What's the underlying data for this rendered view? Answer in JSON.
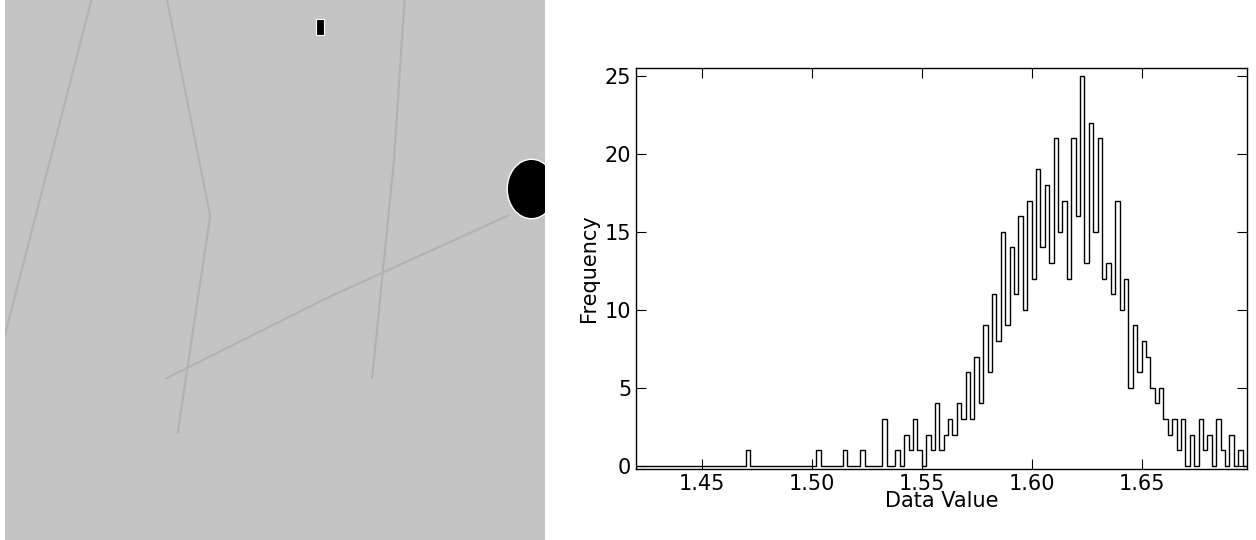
{
  "chart_data": {
    "type": "histogram",
    "x_label": "Data Value",
    "y_label": "Frequency",
    "bins": [
      1.42,
      1.422,
      1.424,
      1.426,
      1.428,
      1.43,
      1.432,
      1.434,
      1.436,
      1.438,
      1.44,
      1.442,
      1.444,
      1.446,
      1.448,
      1.45,
      1.452,
      1.454,
      1.456,
      1.458,
      1.46,
      1.462,
      1.464,
      1.466,
      1.468,
      1.47,
      1.472,
      1.474,
      1.476,
      1.478,
      1.48,
      1.482,
      1.484,
      1.486,
      1.488,
      1.49,
      1.492,
      1.494,
      1.496,
      1.498,
      1.5,
      1.502,
      1.504,
      1.506,
      1.508,
      1.51,
      1.512,
      1.514,
      1.516,
      1.518,
      1.52,
      1.522,
      1.524,
      1.526,
      1.528,
      1.53,
      1.532,
      1.534,
      1.536,
      1.538,
      1.54,
      1.542,
      1.544,
      1.546,
      1.548,
      1.55,
      1.552,
      1.554,
      1.556,
      1.558,
      1.56,
      1.562,
      1.564,
      1.566,
      1.568,
      1.57,
      1.572,
      1.574,
      1.576,
      1.578,
      1.58,
      1.582,
      1.584,
      1.586,
      1.588,
      1.59,
      1.592,
      1.594,
      1.596,
      1.598,
      1.6,
      1.602,
      1.604,
      1.606,
      1.608,
      1.61,
      1.612,
      1.614,
      1.616,
      1.618,
      1.62,
      1.622,
      1.624,
      1.626,
      1.628,
      1.63,
      1.632,
      1.634,
      1.636,
      1.638,
      1.64,
      1.642,
      1.644,
      1.646,
      1.648,
      1.65,
      1.652,
      1.654,
      1.656,
      1.658,
      1.66,
      1.662,
      1.664,
      1.666,
      1.668,
      1.67,
      1.672,
      1.674,
      1.676,
      1.678,
      1.68,
      1.682,
      1.684,
      1.686,
      1.688,
      1.69,
      1.692,
      1.694,
      1.696,
      1.698
    ],
    "values": [
      0,
      0,
      0,
      0,
      0,
      0,
      0,
      0,
      0,
      0,
      0,
      0,
      0,
      0,
      0,
      0,
      0,
      0,
      0,
      0,
      0,
      0,
      0,
      0,
      0,
      1,
      0,
      0,
      0,
      0,
      0,
      0,
      0,
      0,
      0,
      0,
      0,
      0,
      0,
      0,
      0,
      1,
      0,
      0,
      0,
      0,
      0,
      1,
      0,
      0,
      0,
      1,
      0,
      0,
      0,
      0,
      3,
      0,
      0,
      1,
      0,
      2,
      1,
      3,
      1,
      0,
      2,
      1,
      4,
      1,
      2,
      3,
      2,
      4,
      3,
      6,
      3,
      7,
      4,
      9,
      6,
      11,
      8,
      15,
      9,
      14,
      11,
      16,
      10,
      17,
      12,
      19,
      14,
      18,
      13,
      21,
      15,
      17,
      12,
      21,
      16,
      25,
      13,
      22,
      15,
      21,
      12,
      13,
      11,
      17,
      10,
      12,
      5,
      9,
      6,
      8,
      7,
      5,
      4,
      5,
      3,
      2,
      3,
      1,
      3,
      0,
      2,
      0,
      3,
      1,
      2,
      0,
      3,
      1,
      0,
      2,
      0,
      1,
      0
    ],
    "color": "#000000",
    "xlim": [
      1.42,
      1.698
    ],
    "xticks": [
      {
        "value": 1.45,
        "label": "1.45"
      },
      {
        "value": 1.5,
        "label": "1.50"
      },
      {
        "value": 1.55,
        "label": "1.55"
      },
      {
        "value": 1.6,
        "label": "1.60"
      },
      {
        "value": 1.65,
        "label": "1.65"
      }
    ],
    "ylim": [
      -0.2,
      25.5
    ],
    "yticks": [
      0,
      5,
      10,
      15,
      20,
      25
    ],
    "grid": false
  }
}
